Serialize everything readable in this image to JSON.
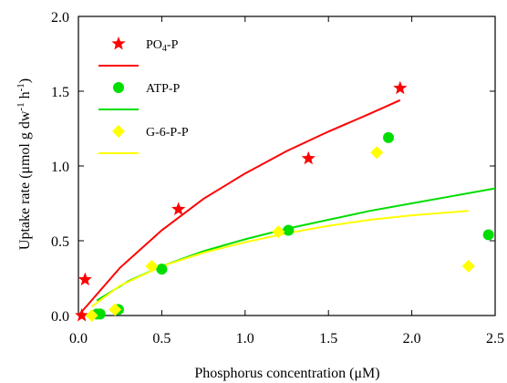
{
  "chart_data": {
    "type": "scatter",
    "xlabel": "Phosphorus concentration (μM)",
    "ylabel": {
      "parts": [
        {
          "text": "Uptake rate (μmol g dw",
          "sup": false
        },
        {
          "text": "-1",
          "sup": true
        },
        {
          "text": " h",
          "sup": false
        },
        {
          "text": "-1",
          "sup": true
        },
        {
          "text": ")",
          "sup": false
        }
      ]
    },
    "xlim": [
      0.0,
      2.5
    ],
    "ylim": [
      0.0,
      2.0
    ],
    "xticks": [
      0.0,
      0.5,
      1.0,
      1.5,
      2.0,
      2.5
    ],
    "yticks": [
      0.0,
      0.5,
      1.0,
      1.5,
      2.0
    ],
    "xtick_labels": [
      "0.0",
      "0.5",
      "1.0",
      "1.5",
      "2.0",
      "2.5"
    ],
    "ytick_labels": [
      "0.0",
      "0.5",
      "1.0",
      "1.5",
      "2.0"
    ],
    "grid": false,
    "legend_position": "top-left",
    "series": [
      {
        "name": "PO4-P",
        "label_main": "PO",
        "label_sub": "4",
        "label_rest": "-P",
        "marker": "star",
        "color": "#ff0000",
        "points": [
          [
            0.02,
            0.0
          ],
          [
            0.04,
            0.24
          ],
          [
            0.6,
            0.71
          ],
          [
            1.38,
            1.05
          ],
          [
            1.93,
            1.52
          ]
        ],
        "fit": [
          [
            0.0,
            0.0
          ],
          [
            0.25,
            0.32
          ],
          [
            0.5,
            0.57
          ],
          [
            0.75,
            0.78
          ],
          [
            1.0,
            0.95
          ],
          [
            1.25,
            1.1
          ],
          [
            1.5,
            1.23
          ],
          [
            1.75,
            1.35
          ],
          [
            1.93,
            1.44
          ]
        ]
      },
      {
        "name": "ATP-P",
        "label_main": "ATP-P",
        "marker": "circle",
        "color": "#00dd00",
        "points": [
          [
            0.11,
            0.01
          ],
          [
            0.13,
            0.01
          ],
          [
            0.24,
            0.04
          ],
          [
            0.5,
            0.31
          ],
          [
            1.26,
            0.57
          ],
          [
            1.86,
            1.19
          ],
          [
            2.46,
            0.54
          ]
        ],
        "fit": [
          [
            0.11,
            0.1
          ],
          [
            0.3,
            0.23
          ],
          [
            0.5,
            0.33
          ],
          [
            0.75,
            0.43
          ],
          [
            1.0,
            0.51
          ],
          [
            1.25,
            0.58
          ],
          [
            1.5,
            0.64
          ],
          [
            1.75,
            0.7
          ],
          [
            2.0,
            0.75
          ],
          [
            2.25,
            0.8
          ],
          [
            2.5,
            0.85
          ]
        ]
      },
      {
        "name": "G-6-P-P",
        "label_main": "G-6-P-P",
        "marker": "diamond",
        "color": "#ffff00",
        "points": [
          [
            0.08,
            0.0
          ],
          [
            0.22,
            0.04
          ],
          [
            0.44,
            0.33
          ],
          [
            1.2,
            0.56
          ],
          [
            1.79,
            1.09
          ],
          [
            2.34,
            0.33
          ]
        ],
        "fit": [
          [
            0.08,
            0.06
          ],
          [
            0.25,
            0.2
          ],
          [
            0.5,
            0.33
          ],
          [
            0.75,
            0.42
          ],
          [
            1.0,
            0.49
          ],
          [
            1.25,
            0.55
          ],
          [
            1.5,
            0.6
          ],
          [
            1.75,
            0.64
          ],
          [
            2.0,
            0.67
          ],
          [
            2.34,
            0.7
          ]
        ]
      }
    ]
  }
}
